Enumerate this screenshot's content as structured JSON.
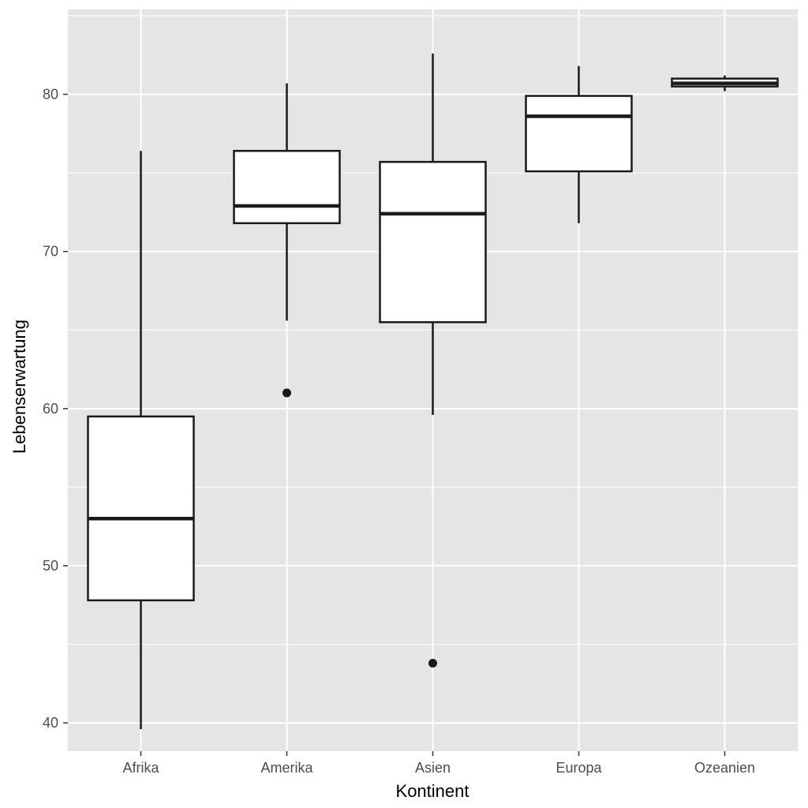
{
  "chart_data": {
    "type": "boxplot",
    "title": "",
    "xlabel": "Kontinent",
    "ylabel": "Lebenserwartung",
    "ylim": [
      38.2,
      85.4
    ],
    "yticks": [
      40,
      50,
      60,
      70,
      80
    ],
    "grid": true,
    "categories": [
      "Afrika",
      "Amerika",
      "Asien",
      "Europa",
      "Ozeanien"
    ],
    "boxes": [
      {
        "category": "Afrika",
        "whisker_low": 39.6,
        "q1": 47.8,
        "median": 53.0,
        "q3": 59.5,
        "whisker_high": 76.4,
        "outliers": []
      },
      {
        "category": "Amerika",
        "whisker_low": 65.6,
        "q1": 71.8,
        "median": 72.9,
        "q3": 76.4,
        "whisker_high": 80.7,
        "outliers": [
          61.0
        ]
      },
      {
        "category": "Asien",
        "whisker_low": 59.6,
        "q1": 65.5,
        "median": 72.4,
        "q3": 75.7,
        "whisker_high": 82.6,
        "outliers": [
          43.8
        ]
      },
      {
        "category": "Europa",
        "whisker_low": 71.8,
        "q1": 75.1,
        "median": 78.6,
        "q3": 79.9,
        "whisker_high": 81.8,
        "outliers": []
      },
      {
        "category": "Ozeanien",
        "whisker_low": 80.2,
        "q1": 80.5,
        "median": 80.7,
        "q3": 81.0,
        "whisker_high": 81.2,
        "outliers": []
      }
    ],
    "colors": {
      "panel_background": "#e5e5e5",
      "grid_line": "#ffffff",
      "box_fill": "#ffffff",
      "box_stroke": "#1a1a1a",
      "outlier": "#1a1a1a",
      "tick_text": "#4d4d4d",
      "title_text": "#000000"
    }
  }
}
